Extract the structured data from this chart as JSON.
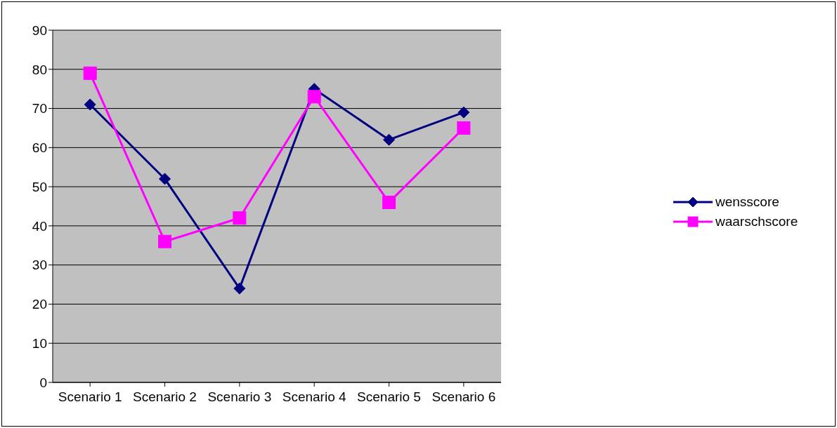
{
  "chart_data": {
    "type": "line",
    "categories": [
      "Scenario 1",
      "Scenario 2",
      "Scenario 3",
      "Scenario 4",
      "Scenario 5",
      "Scenario 6"
    ],
    "series": [
      {
        "name": "wensscore",
        "color": "#000080",
        "marker": "diamond",
        "values": [
          71,
          52,
          24,
          75,
          62,
          69
        ]
      },
      {
        "name": "waarschscore",
        "color": "#ff00ff",
        "marker": "square",
        "values": [
          79,
          36,
          42,
          73,
          46,
          65
        ]
      }
    ],
    "ylim": [
      0,
      90
    ],
    "yticks": [
      0,
      10,
      20,
      30,
      40,
      50,
      60,
      70,
      80,
      90
    ],
    "grid": "y",
    "legend": "right",
    "line_style": "solid"
  }
}
